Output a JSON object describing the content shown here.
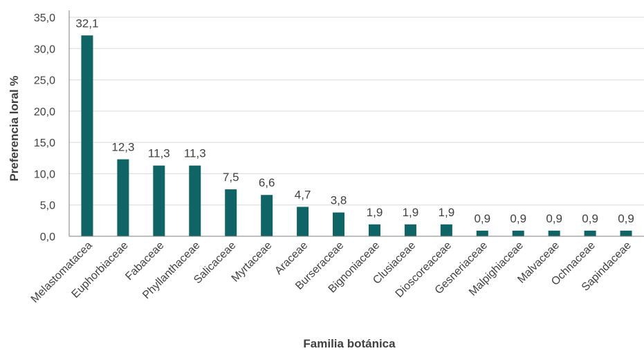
{
  "chart_data": {
    "type": "bar",
    "xlabel": "Familia botánica",
    "ylabel": "Preferencia loral %",
    "ylim": [
      0,
      35
    ],
    "yticks": [
      "0,0",
      "5,0",
      "10,0",
      "15,0",
      "20,0",
      "25,0",
      "30,0",
      "35,0"
    ],
    "grid": true,
    "bar_color": "#0f6466",
    "categories": [
      "Melastomatacea",
      "Euphorbiaceae",
      "Fabaceae",
      "Phyllanthaceae",
      "Salicaceae",
      "Myrtaceae",
      "Araceae",
      "Burseraceae",
      "Bignoniaceae",
      "Clusiaceae",
      "Dioscoreaceae",
      "Gesneriaceae",
      "Malpighiaceae",
      "Malvaceae",
      "Ochnaceae",
      "Sapindaceae"
    ],
    "values": [
      32.1,
      12.3,
      11.3,
      11.3,
      7.5,
      6.6,
      4.7,
      3.8,
      1.9,
      1.9,
      1.9,
      0.9,
      0.9,
      0.9,
      0.9,
      0.9
    ],
    "data_labels": [
      "32,1",
      "12,3",
      "11,3",
      "11,3",
      "7,5",
      "6,6",
      "4,7",
      "3,8",
      "1,9",
      "1,9",
      "1,9",
      "0,9",
      "0,9",
      "0,9",
      "0,9",
      "0,9"
    ]
  }
}
